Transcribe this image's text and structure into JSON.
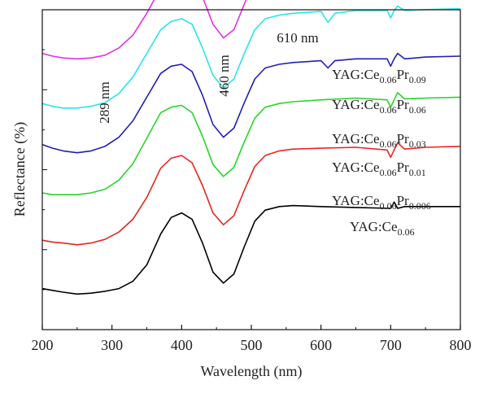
{
  "chart_data": {
    "type": "line",
    "xlabel": "Wavelength (nm)",
    "ylabel": "Reflectance (%)",
    "xlim": [
      200,
      800
    ],
    "xticks": [
      200,
      300,
      400,
      500,
      600,
      700,
      800
    ],
    "yticks_labeled": false,
    "grid": false,
    "legend": "inline labels at right",
    "annotations": [
      {
        "text": "289 nm",
        "x": 289,
        "rotated": true
      },
      {
        "text": "460 nm",
        "x": 460,
        "rotated": true
      },
      {
        "text": "610 nm",
        "x": 610,
        "rotated": false
      }
    ],
    "series": [
      {
        "name_base": "YAG:Ce",
        "name_sub1": "0.06",
        "name_mid": "",
        "name_sub2": "",
        "color": "#000000",
        "offset": 0,
        "x": [
          200,
          215,
          230,
          250,
          270,
          290,
          310,
          330,
          350,
          370,
          385,
          400,
          415,
          430,
          445,
          460,
          475,
          490,
          505,
          520,
          540,
          560,
          600,
          650,
          700,
          705,
          710,
          720,
          750,
          800
        ],
        "y": [
          0.12,
          0.1,
          0.08,
          0.06,
          0.07,
          0.09,
          0.12,
          0.2,
          0.38,
          0.72,
          0.9,
          0.95,
          0.88,
          0.62,
          0.3,
          0.18,
          0.28,
          0.58,
          0.86,
          0.98,
          1.02,
          1.03,
          1.02,
          1.01,
          1.0,
          1.07,
          1.0,
          1.02,
          1.02,
          1.02
        ]
      },
      {
        "name_base": "YAG:Ce",
        "name_sub1": "0.06",
        "name_mid": "Pr",
        "name_sub2": "0.006",
        "color": "#e8251f",
        "offset": 0.6,
        "x": [
          200,
          215,
          230,
          250,
          270,
          290,
          310,
          330,
          350,
          370,
          385,
          400,
          415,
          430,
          445,
          460,
          475,
          490,
          505,
          520,
          540,
          560,
          600,
          650,
          695,
          700,
          705,
          710,
          720,
          750,
          800
        ],
        "y": [
          0.05,
          0.03,
          0.02,
          0.0,
          0.02,
          0.06,
          0.14,
          0.28,
          0.52,
          0.84,
          0.95,
          0.98,
          0.9,
          0.65,
          0.35,
          0.22,
          0.32,
          0.6,
          0.86,
          0.98,
          1.03,
          1.05,
          1.06,
          1.07,
          1.04,
          0.96,
          1.04,
          1.12,
          1.05,
          1.07,
          1.08
        ]
      },
      {
        "name_base": "YAG:Ce",
        "name_sub1": "0.06",
        "name_mid": "Pr",
        "name_sub2": "0.01",
        "color": "#27d627",
        "offset": 1.15,
        "x": [
          200,
          215,
          230,
          250,
          270,
          290,
          310,
          330,
          350,
          370,
          385,
          400,
          415,
          430,
          445,
          460,
          475,
          490,
          505,
          520,
          540,
          560,
          600,
          650,
          695,
          700,
          705,
          710,
          720,
          750,
          800
        ],
        "y": [
          0.02,
          0.0,
          0.0,
          0.0,
          0.02,
          0.06,
          0.16,
          0.34,
          0.62,
          0.9,
          0.96,
          0.98,
          0.9,
          0.64,
          0.33,
          0.2,
          0.3,
          0.58,
          0.84,
          0.96,
          1.0,
          1.02,
          1.04,
          1.06,
          1.04,
          0.96,
          1.04,
          1.12,
          1.05,
          1.06,
          1.07
        ]
      },
      {
        "name_base": "YAG:Ce",
        "name_sub1": "0.06",
        "name_mid": "Pr",
        "name_sub2": "0.03",
        "color": "#1f1fb8",
        "offset": 1.58,
        "x": [
          200,
          215,
          230,
          250,
          270,
          290,
          310,
          330,
          350,
          370,
          385,
          400,
          415,
          430,
          445,
          460,
          475,
          490,
          505,
          520,
          540,
          560,
          600,
          605,
          610,
          620,
          650,
          695,
          700,
          705,
          710,
          720,
          750,
          800
        ],
        "y": [
          0.12,
          0.08,
          0.05,
          0.03,
          0.05,
          0.1,
          0.2,
          0.38,
          0.64,
          0.9,
          0.98,
          1.0,
          0.92,
          0.66,
          0.34,
          0.2,
          0.3,
          0.58,
          0.84,
          0.96,
          1.0,
          1.02,
          1.04,
          1.0,
          0.96,
          1.04,
          1.06,
          1.06,
          0.98,
          1.06,
          1.12,
          1.06,
          1.08,
          1.09
        ]
      },
      {
        "name_base": "YAG:Ce",
        "name_sub1": "0.06",
        "name_mid": "Pr",
        "name_sub2": "0.06",
        "color": "#27e6e6",
        "offset": 2.1,
        "x": [
          200,
          215,
          230,
          250,
          270,
          290,
          310,
          330,
          350,
          370,
          385,
          400,
          415,
          430,
          445,
          460,
          475,
          490,
          505,
          520,
          540,
          560,
          600,
          605,
          610,
          620,
          650,
          695,
          700,
          705,
          710,
          720,
          750,
          800
        ],
        "y": [
          0.05,
          0.02,
          0.0,
          0.0,
          0.02,
          0.06,
          0.16,
          0.34,
          0.6,
          0.86,
          0.95,
          0.98,
          0.92,
          0.66,
          0.36,
          0.22,
          0.32,
          0.6,
          0.86,
          0.98,
          1.02,
          1.04,
          1.06,
          1.0,
          0.94,
          1.04,
          1.07,
          1.07,
          0.99,
          1.07,
          1.12,
          1.07,
          1.08,
          1.09
        ]
      },
      {
        "name_base": "YAG:Ce",
        "name_sub1": "0.06",
        "name_mid": "Pr",
        "name_sub2": "0.09",
        "color": "#e62ee6",
        "offset": 2.62,
        "x": [
          200,
          215,
          230,
          250,
          270,
          290,
          310,
          330,
          350,
          370,
          385,
          400,
          415,
          430,
          445,
          460,
          475,
          490,
          505,
          520,
          540,
          560,
          595,
          600,
          605,
          610,
          620,
          650,
          700,
          750,
          800
        ],
        "y": [
          0.08,
          0.05,
          0.03,
          0.02,
          0.03,
          0.06,
          0.14,
          0.28,
          0.52,
          0.8,
          0.92,
          0.96,
          0.92,
          0.7,
          0.4,
          0.25,
          0.34,
          0.62,
          0.9,
          1.02,
          1.06,
          1.08,
          1.1,
          1.06,
          1.1,
          1.0,
          1.1,
          1.12,
          1.13,
          1.14,
          1.15
        ]
      }
    ]
  }
}
